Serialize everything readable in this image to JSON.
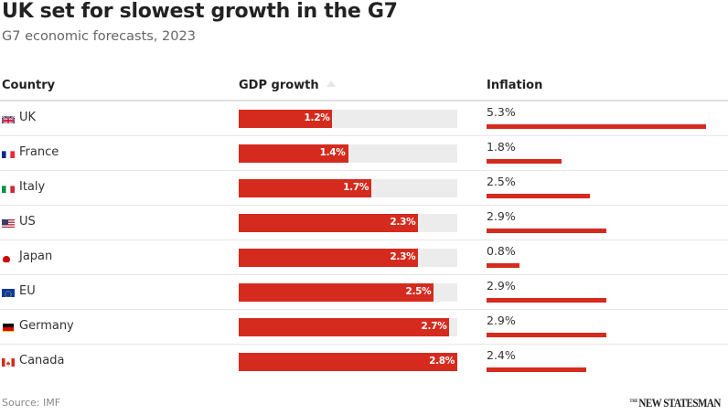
{
  "header": {
    "title": "UK set for slowest growth in the G7",
    "subtitle": "G7 economic forecasts, 2023"
  },
  "table": {
    "columns": [
      "Country",
      "GDP growth",
      "Inflation"
    ],
    "sort_icon": "sort-ascending-icon"
  },
  "footer": {
    "source": "Source: IMF",
    "logo_small": "THE",
    "logo_main": "NEW STATESMAN"
  },
  "colors": {
    "bar": "#d52b1e",
    "track": "#ececec"
  },
  "chart_data": {
    "type": "table",
    "title": "UK set for slowest growth in the G7",
    "subtitle": "G7 economic forecasts, 2023",
    "columns": [
      "Country",
      "GDP growth",
      "Inflation"
    ],
    "gdp_max": 2.8,
    "inflation_max": 5.3,
    "rows": [
      {
        "country": "UK",
        "flag": "uk-flag",
        "gdp": 1.2,
        "gdp_label": "1.2%",
        "inflation": 5.3,
        "inflation_label": "5.3%"
      },
      {
        "country": "France",
        "flag": "france-flag",
        "gdp": 1.4,
        "gdp_label": "1.4%",
        "inflation": 1.8,
        "inflation_label": "1.8%"
      },
      {
        "country": "Italy",
        "flag": "italy-flag",
        "gdp": 1.7,
        "gdp_label": "1.7%",
        "inflation": 2.5,
        "inflation_label": "2.5%"
      },
      {
        "country": "US",
        "flag": "us-flag",
        "gdp": 2.3,
        "gdp_label": "2.3%",
        "inflation": 2.9,
        "inflation_label": "2.9%"
      },
      {
        "country": "Japan",
        "flag": "japan-flag",
        "gdp": 2.3,
        "gdp_label": "2.3%",
        "inflation": 0.8,
        "inflation_label": "0.8%"
      },
      {
        "country": "EU",
        "flag": "eu-flag",
        "gdp": 2.5,
        "gdp_label": "2.5%",
        "inflation": 2.9,
        "inflation_label": "2.9%"
      },
      {
        "country": "Germany",
        "flag": "germany-flag",
        "gdp": 2.7,
        "gdp_label": "2.7%",
        "inflation": 2.9,
        "inflation_label": "2.9%"
      },
      {
        "country": "Canada",
        "flag": "canada-flag",
        "gdp": 2.8,
        "gdp_label": "2.8%",
        "inflation": 2.4,
        "inflation_label": "2.4%"
      }
    ]
  }
}
